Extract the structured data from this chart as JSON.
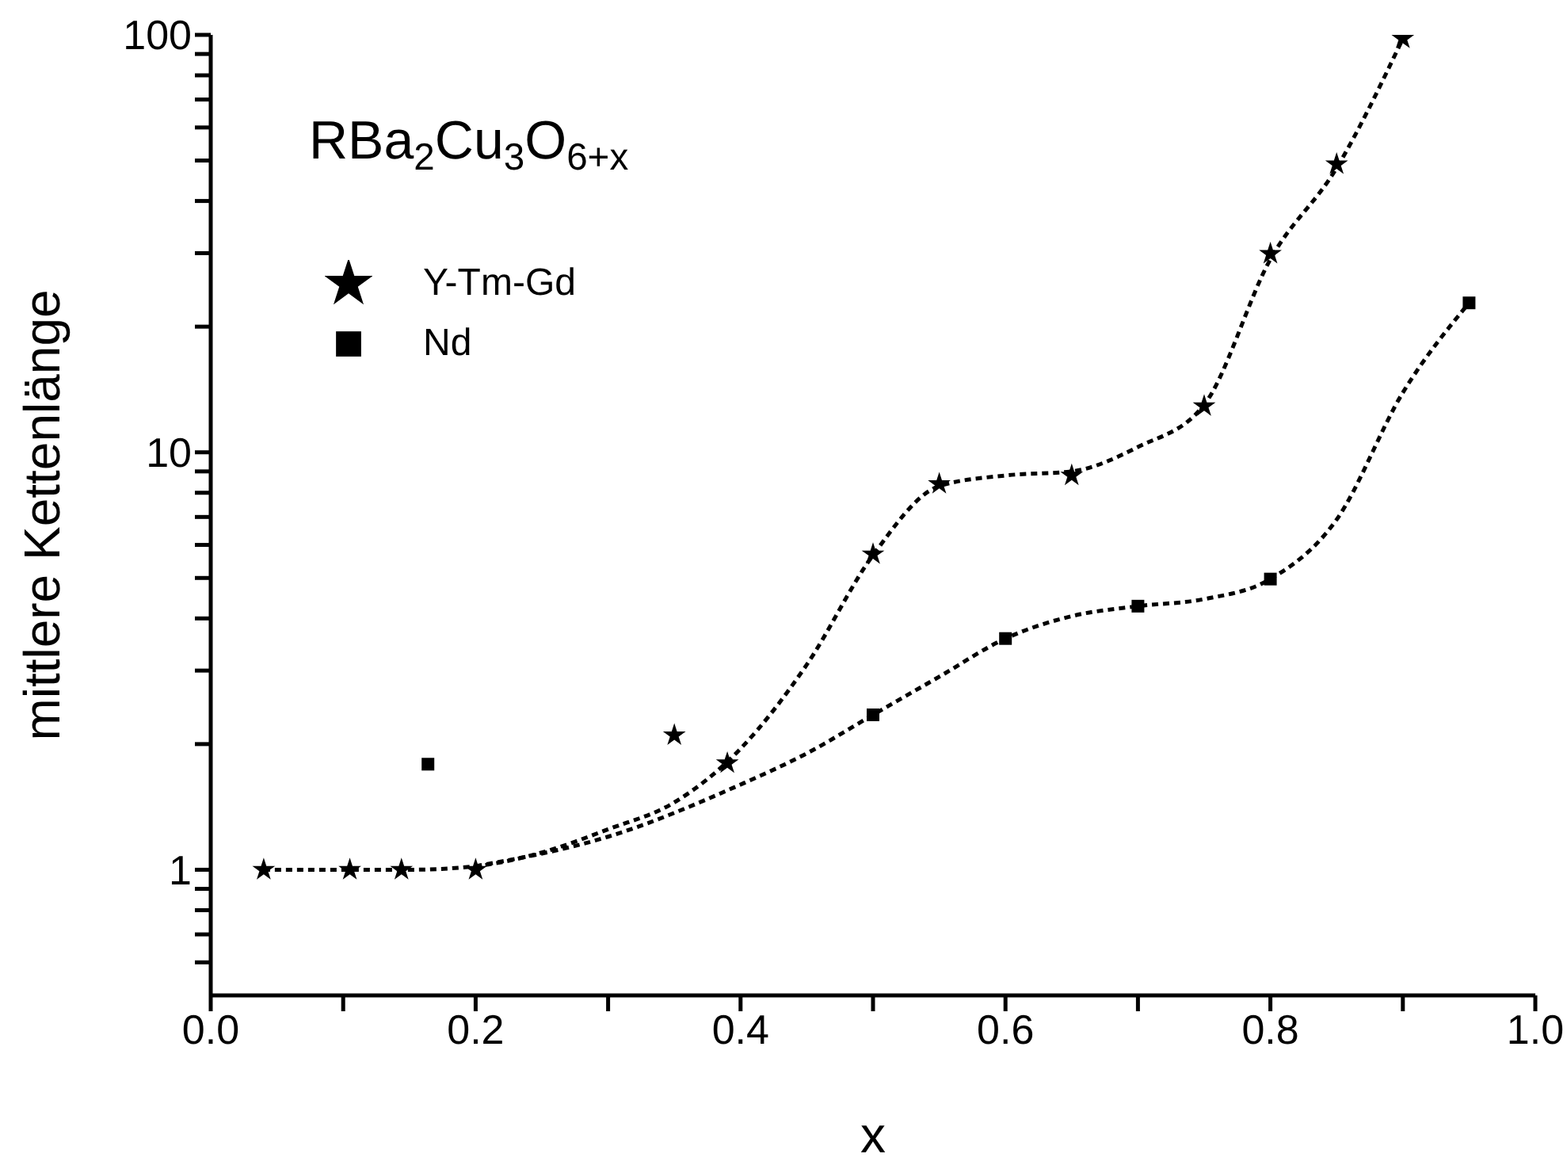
{
  "chart_data": {
    "type": "scatter",
    "xlabel": "x",
    "ylabel": "mittlere Kettenlänge",
    "annotations": [
      "RBa$_{2}$Cu$_{3}$O$_{6+x}$"
    ],
    "xlim": [
      0,
      1
    ],
    "xticks": [
      {
        "value": 0,
        "label": "0.0"
      },
      {
        "value": 0.1,
        "label": null
      },
      {
        "value": 0.2,
        "label": "0.2"
      },
      {
        "value": 0.3,
        "label": null
      },
      {
        "value": 0.4,
        "label": "0.4"
      },
      {
        "value": 0.5,
        "label": null
      },
      {
        "value": 0.6,
        "label": "0.6"
      },
      {
        "value": 0.7,
        "label": null
      },
      {
        "value": 0.8,
        "label": "0.8"
      },
      {
        "value": 0.9,
        "label": null
      },
      {
        "value": 1,
        "label": "1.0"
      }
    ],
    "ylim": [
      0.5,
      100
    ],
    "yticks": [
      {
        "value": 0.6,
        "label": null
      },
      {
        "value": 0.7,
        "label": null
      },
      {
        "value": 0.8,
        "label": null
      },
      {
        "value": 0.9,
        "label": null
      },
      1,
      {
        "value": 2,
        "label": null
      },
      {
        "value": 3,
        "label": null
      },
      {
        "value": 4,
        "label": null
      },
      {
        "value": 5,
        "label": null
      },
      {
        "value": 6,
        "label": null
      },
      {
        "value": 7,
        "label": null
      },
      {
        "value": 8,
        "label": null
      },
      {
        "value": 9,
        "label": null
      },
      10,
      {
        "value": 20,
        "label": null
      },
      {
        "value": 30,
        "label": null
      },
      {
        "value": 40,
        "label": null
      },
      {
        "value": 50,
        "label": null
      },
      {
        "value": 60,
        "label": null
      },
      {
        "value": 70,
        "label": null
      },
      {
        "value": 80,
        "label": null
      },
      {
        "value": 90,
        "label": null
      },
      100
    ],
    "log": "y",
    "legend": "top left",
    "series": [
      {
        "name": "Y-Tm-Gd",
        "marker": "star",
        "color": "#000000",
        "x": [
          0.04,
          0.105,
          0.144,
          0.2,
          0.35,
          0.39,
          0.5,
          0.55,
          0.65,
          0.75,
          0.8,
          0.85,
          0.9
        ],
        "values": [
          1,
          1,
          1,
          1,
          2.1,
          1.8,
          5.7,
          8.4,
          8.8,
          12.9,
          29.9,
          49,
          98
        ]
      },
      {
        "name": "Nd",
        "marker": "square",
        "color": "#000000",
        "x": [
          0.164,
          0.5,
          0.6,
          0.7,
          0.8,
          0.95
        ],
        "values": [
          1.79,
          2.35,
          3.58,
          4.28,
          4.97,
          22.8
        ]
      },
      {
        "type": "line",
        "marker": "none",
        "line_style": "dotted",
        "color": "#000000",
        "x": [
          0.04,
          0.15,
          0.2,
          0.25,
          0.3,
          0.35,
          0.4,
          0.45,
          0.5,
          0.55,
          0.6,
          0.65,
          0.7,
          0.75,
          0.8,
          0.85,
          0.9
        ],
        "values": [
          1,
          1,
          1.02,
          1.1,
          1.25,
          1.45,
          1.95,
          3.1,
          5.67,
          8.3,
          8.8,
          9,
          10.3,
          13,
          29,
          48,
          98
        ]
      },
      {
        "type": "line",
        "marker": "none",
        "line_style": "dotted",
        "color": "#000000",
        "x": [
          0.2,
          0.3,
          0.4,
          0.45,
          0.5,
          0.55,
          0.6,
          0.65,
          0.7,
          0.75,
          0.8,
          0.85,
          0.9,
          0.95
        ],
        "values": [
          1.02,
          1.2,
          1.6,
          1.9,
          2.35,
          2.9,
          3.58,
          4.05,
          4.28,
          4.45,
          4.97,
          6.9,
          13.9,
          22.8
        ]
      }
    ]
  }
}
